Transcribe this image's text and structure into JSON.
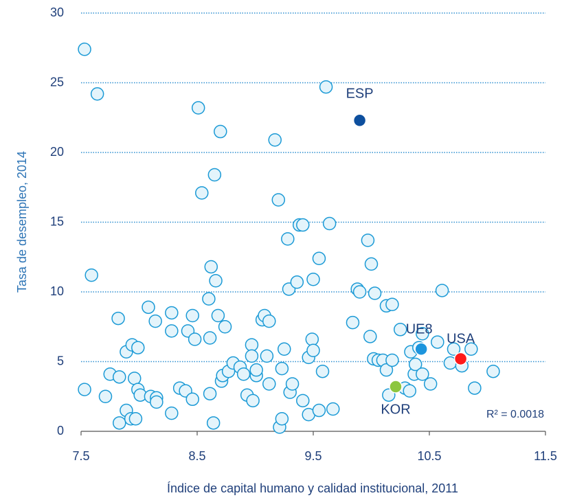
{
  "chart_data": {
    "type": "scatter",
    "x_label": "Índice de capital humano y calidad institucional, 2011",
    "y_label": "Tasa de desempleo, 2014",
    "annotation": "R² = 0.0018",
    "xlim": [
      7.5,
      11.5
    ],
    "xticks": [
      7.5,
      8.5,
      9.5,
      10.5,
      11.5
    ],
    "ylim": [
      0,
      30
    ],
    "yticks": [
      0,
      5,
      10,
      15,
      20,
      25,
      30
    ],
    "grid": true,
    "grid_color": "#2e8fd0",
    "series": [
      {
        "color": "#e4f4fb",
        "edge_color": "#1b9ad6",
        "x": [
          7.53,
          7.64,
          7.59,
          7.53,
          7.71,
          7.75,
          7.82,
          7.83,
          7.83,
          7.89,
          7.93,
          7.97,
          7.89,
          7.94,
          7.99,
          7.96,
          7.99,
          8.01,
          8.08,
          8.14,
          8.1,
          8.15,
          8.15,
          8.28,
          8.28,
          8.28,
          8.35,
          8.4,
          8.42,
          8.46,
          8.48,
          8.46,
          8.51,
          8.54,
          8.6,
          8.62,
          8.61,
          8.61,
          8.64,
          8.65,
          8.66,
          8.68,
          8.7,
          8.71,
          8.72,
          8.74,
          8.77,
          8.81,
          8.87,
          8.9,
          8.93,
          8.98,
          8.97,
          8.97,
          9.01,
          9.01,
          9.06,
          9.08,
          9.12,
          9.1,
          9.12,
          9.17,
          9.2,
          9.21,
          9.23,
          9.23,
          9.25,
          9.28,
          9.29,
          9.3,
          9.32,
          9.36,
          9.38,
          9.41,
          9.41,
          9.46,
          9.46,
          9.49,
          9.5,
          9.5,
          9.55,
          9.55,
          9.58,
          9.61,
          9.64,
          9.67,
          9.84,
          9.88,
          9.9,
          9.97,
          9.99,
          10.0,
          10.03,
          10.02,
          10.06,
          10.1,
          10.13,
          10.13,
          10.18,
          10.18,
          10.15,
          10.25,
          10.29,
          10.33,
          10.34,
          10.37,
          10.38,
          10.41,
          10.44,
          10.44,
          10.51,
          10.57,
          10.61,
          10.68,
          10.71,
          10.86,
          10.78,
          10.89,
          11.05
        ],
        "values": [
          27.4,
          24.2,
          11.2,
          3.0,
          2.5,
          4.1,
          8.1,
          3.9,
          0.6,
          1.5,
          0.9,
          0.9,
          5.7,
          6.2,
          6.0,
          3.8,
          3.0,
          2.6,
          8.9,
          7.9,
          2.5,
          2.4,
          2.1,
          8.5,
          7.2,
          1.3,
          3.1,
          2.9,
          7.2,
          8.3,
          6.6,
          2.3,
          23.2,
          17.1,
          9.5,
          11.8,
          6.7,
          2.7,
          0.6,
          18.4,
          10.8,
          8.3,
          21.5,
          3.6,
          4.0,
          7.5,
          4.3,
          4.9,
          4.6,
          4.1,
          2.6,
          2.2,
          6.2,
          5.4,
          4.0,
          4.4,
          8.0,
          8.3,
          7.9,
          5.4,
          3.4,
          20.9,
          16.6,
          0.3,
          0.9,
          4.5,
          5.9,
          13.8,
          10.2,
          2.8,
          3.4,
          10.7,
          14.8,
          14.8,
          2.2,
          5.3,
          1.2,
          6.6,
          5.8,
          10.9,
          12.4,
          1.5,
          4.3,
          24.7,
          14.9,
          1.6,
          7.8,
          10.2,
          10.0,
          13.7,
          6.8,
          12.0,
          9.9,
          5.2,
          5.1,
          5.1,
          9.0,
          4.4,
          9.1,
          5.1,
          2.6,
          7.3,
          3.1,
          2.9,
          5.7,
          4.1,
          4.8,
          6.0,
          7.0,
          4.1,
          3.4,
          6.4,
          10.1,
          4.9,
          5.9,
          5.9,
          4.7,
          3.1,
          4.3
        ]
      },
      {
        "name": "ESP",
        "color": "#0d4f9e",
        "x": [
          9.9
        ],
        "values": [
          22.3
        ]
      },
      {
        "name": "UE8",
        "color": "#1d95dd",
        "x": [
          10.43
        ],
        "values": [
          5.9
        ]
      },
      {
        "name": "USA",
        "color": "#ff1a1a",
        "x": [
          10.77
        ],
        "values": [
          5.2
        ]
      },
      {
        "name": "KOR",
        "color": "#8cc63f",
        "x": [
          10.21
        ],
        "values": [
          3.2
        ]
      }
    ]
  }
}
